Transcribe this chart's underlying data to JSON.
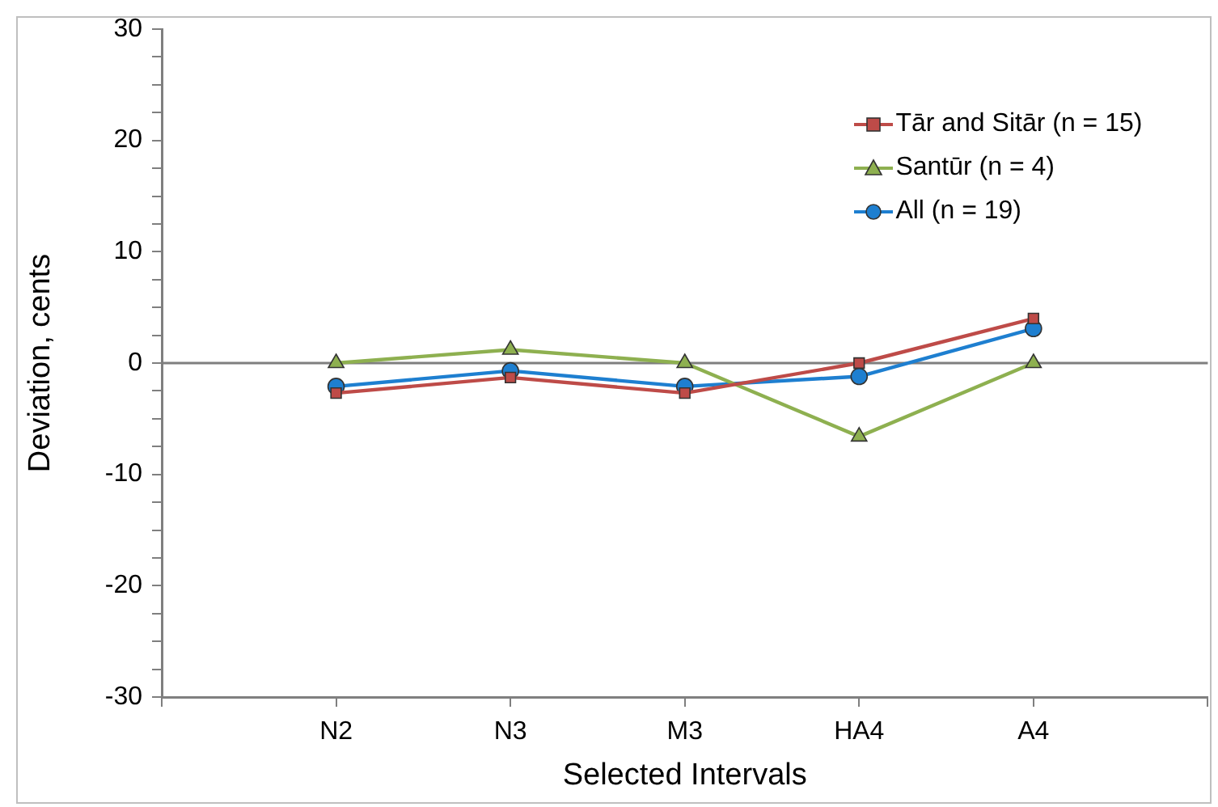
{
  "chart_data": {
    "type": "line",
    "xlabel": "Selected Intervals",
    "ylabel": "Deviation, cents",
    "categories": [
      null,
      "N2",
      "N3",
      "M3",
      "HA4",
      "A4",
      null
    ],
    "series": [
      {
        "name": "Tār and Sitār (n = 15)",
        "color": "#be4b48",
        "marker": "square",
        "values": [
          null,
          -2.7,
          -1.3,
          -2.7,
          0,
          4.0,
          null
        ]
      },
      {
        "name": "Santūr (n = 4)",
        "color": "#8eb050",
        "marker": "triangle",
        "values": [
          null,
          0,
          1.2,
          0,
          -6.6,
          0,
          null
        ]
      },
      {
        "name": "All (n = 19)",
        "color": "#1e7fd0",
        "marker": "circle",
        "values": [
          null,
          -2.1,
          -0.7,
          -2.1,
          -1.2,
          3.1,
          null
        ]
      }
    ],
    "ylim": [
      -30,
      30
    ],
    "yticks": [
      -30,
      {
        "value": -27.5,
        "label": null
      },
      {
        "value": -25,
        "label": null
      },
      {
        "value": -22.5,
        "label": null
      },
      -20,
      {
        "value": -17.5,
        "label": null
      },
      {
        "value": -15,
        "label": null
      },
      {
        "value": -12.5,
        "label": null
      },
      -10,
      {
        "value": -7.5,
        "label": null
      },
      {
        "value": -5,
        "label": null
      },
      {
        "value": -2.5,
        "label": null
      },
      0,
      {
        "value": 2.5,
        "label": null
      },
      {
        "value": 5,
        "label": null
      },
      {
        "value": 7.5,
        "label": null
      },
      10,
      {
        "value": 12.5,
        "label": null
      },
      {
        "value": 15,
        "label": null
      },
      {
        "value": 17.5,
        "label": null
      },
      20,
      {
        "value": 22.5,
        "label": null
      },
      {
        "value": 25,
        "label": null
      },
      {
        "value": 27.5,
        "label": null
      },
      30
    ],
    "ref_lines": [
      {
        "axis": "y",
        "value": 0,
        "color": "#7f7f7f"
      }
    ],
    "grid": false,
    "legend": "top right",
    "line_style": "solid"
  }
}
